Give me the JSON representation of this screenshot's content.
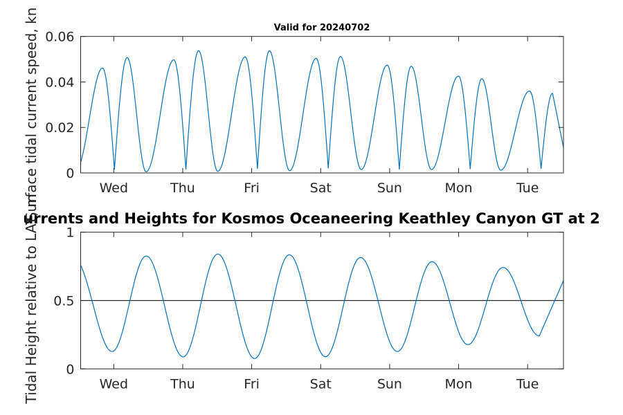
{
  "chart_data": [
    {
      "type": "line",
      "title": "Valid for 20240702",
      "xlabel": "",
      "ylabel": "Surface tidal current speed, kn",
      "xlim": [
        -0.48,
        6.52
      ],
      "ylim": [
        0,
        0.06
      ],
      "x_unit": "days (0 = Wed)",
      "xticks": [
        {
          "value": 0,
          "label": "Wed"
        },
        {
          "value": 1,
          "label": "Thu"
        },
        {
          "value": 2,
          "label": "Fri"
        },
        {
          "value": 3,
          "label": "Sat"
        },
        {
          "value": 4,
          "label": "Sun"
        },
        {
          "value": 5,
          "label": "Mon"
        },
        {
          "value": 6,
          "label": "Tue"
        }
      ],
      "yticks": [
        {
          "value": 0,
          "label": "0"
        },
        {
          "value": 0.02,
          "label": "0.02"
        },
        {
          "value": 0.04,
          "label": "0.04"
        },
        {
          "value": 0.06,
          "label": "0.06"
        }
      ],
      "grid": false,
      "color": "#0072BD",
      "series": [
        {
          "name": "speed",
          "points": [
            {
              "x": -0.48,
              "y": 0.0046,
              "k": "start"
            },
            {
              "x": -0.163,
              "y": 0.0461,
              "k": "peak"
            },
            {
              "x": 0.01,
              "y": 0.0015,
              "k": "sharp"
            },
            {
              "x": 0.194,
              "y": 0.0507,
              "k": "peak"
            },
            {
              "x": 0.47,
              "y": 0.0005,
              "k": "round"
            },
            {
              "x": 0.87,
              "y": 0.0497,
              "k": "peak"
            },
            {
              "x": 1.046,
              "y": 0.0015,
              "k": "sharp"
            },
            {
              "x": 1.23,
              "y": 0.0537,
              "k": "peak"
            },
            {
              "x": 1.508,
              "y": 0.0007,
              "k": "round"
            },
            {
              "x": 1.906,
              "y": 0.051,
              "k": "peak"
            },
            {
              "x": 2.083,
              "y": 0.0018,
              "k": "sharp"
            },
            {
              "x": 2.257,
              "y": 0.0537,
              "k": "peak"
            },
            {
              "x": 2.55,
              "y": 0.001,
              "k": "round"
            },
            {
              "x": 2.935,
              "y": 0.0504,
              "k": "peak"
            },
            {
              "x": 3.11,
              "y": 0.002,
              "k": "sharp"
            },
            {
              "x": 3.287,
              "y": 0.0512,
              "k": "peak"
            },
            {
              "x": 3.588,
              "y": 0.0015,
              "k": "round"
            },
            {
              "x": 3.965,
              "y": 0.0474,
              "k": "peak"
            },
            {
              "x": 4.14,
              "y": 0.0015,
              "k": "sharp"
            },
            {
              "x": 4.313,
              "y": 0.0469,
              "k": "peak"
            },
            {
              "x": 4.607,
              "y": 0.0015,
              "k": "round"
            },
            {
              "x": 4.998,
              "y": 0.0426,
              "k": "peak"
            },
            {
              "x": 5.168,
              "y": 0.0017,
              "k": "sharp"
            },
            {
              "x": 5.336,
              "y": 0.0414,
              "k": "peak"
            },
            {
              "x": 5.61,
              "y": 0.0012,
              "k": "round"
            },
            {
              "x": 6.028,
              "y": 0.036,
              "k": "peak"
            },
            {
              "x": 6.195,
              "y": 0.0018,
              "k": "sharp"
            },
            {
              "x": 6.362,
              "y": 0.035,
              "k": "peak"
            },
            {
              "x": 6.52,
              "y": 0.0112,
              "k": "end"
            }
          ]
        }
      ]
    },
    {
      "type": "line",
      "title": "urrents and Heights for Kosmos Oceaneering Keathley Canyon GT at 2",
      "xlabel": "",
      "ylabel": "Tidal Height relative to LAT, m",
      "xlim": [
        -0.48,
        6.52
      ],
      "ylim": [
        0,
        1
      ],
      "x_unit": "days (0 = Wed)",
      "xticks": [
        {
          "value": 0,
          "label": "Wed"
        },
        {
          "value": 1,
          "label": "Thu"
        },
        {
          "value": 2,
          "label": "Fri"
        },
        {
          "value": 3,
          "label": "Sat"
        },
        {
          "value": 4,
          "label": "Sun"
        },
        {
          "value": 5,
          "label": "Mon"
        },
        {
          "value": 6,
          "label": "Tue"
        }
      ],
      "yticks": [
        {
          "value": 0,
          "label": "0"
        },
        {
          "value": 0.5,
          "label": "0.5"
        },
        {
          "value": 1,
          "label": "1"
        }
      ],
      "grid": false,
      "color": "#0072BD",
      "reference_line": {
        "y": 0.5,
        "color": "#262626"
      },
      "series": [
        {
          "name": "height",
          "points": [
            {
              "x": -0.48,
              "y": 0.759,
              "k": "start"
            },
            {
              "x": -0.023,
              "y": 0.127,
              "k": "round"
            },
            {
              "x": 0.471,
              "y": 0.826,
              "k": "peak"
            },
            {
              "x": 1.006,
              "y": 0.088,
              "k": "round"
            },
            {
              "x": 1.508,
              "y": 0.84,
              "k": "peak"
            },
            {
              "x": 2.043,
              "y": 0.076,
              "k": "round"
            },
            {
              "x": 2.545,
              "y": 0.835,
              "k": "peak"
            },
            {
              "x": 3.07,
              "y": 0.089,
              "k": "round"
            },
            {
              "x": 3.578,
              "y": 0.815,
              "k": "peak"
            },
            {
              "x": 4.112,
              "y": 0.127,
              "k": "round"
            },
            {
              "x": 4.614,
              "y": 0.784,
              "k": "peak"
            },
            {
              "x": 5.135,
              "y": 0.177,
              "k": "round"
            },
            {
              "x": 5.644,
              "y": 0.742,
              "k": "peak"
            },
            {
              "x": 6.17,
              "y": 0.241,
              "k": "round"
            },
            {
              "x": 6.52,
              "y": 0.646,
              "k": "end"
            }
          ]
        }
      ]
    }
  ]
}
